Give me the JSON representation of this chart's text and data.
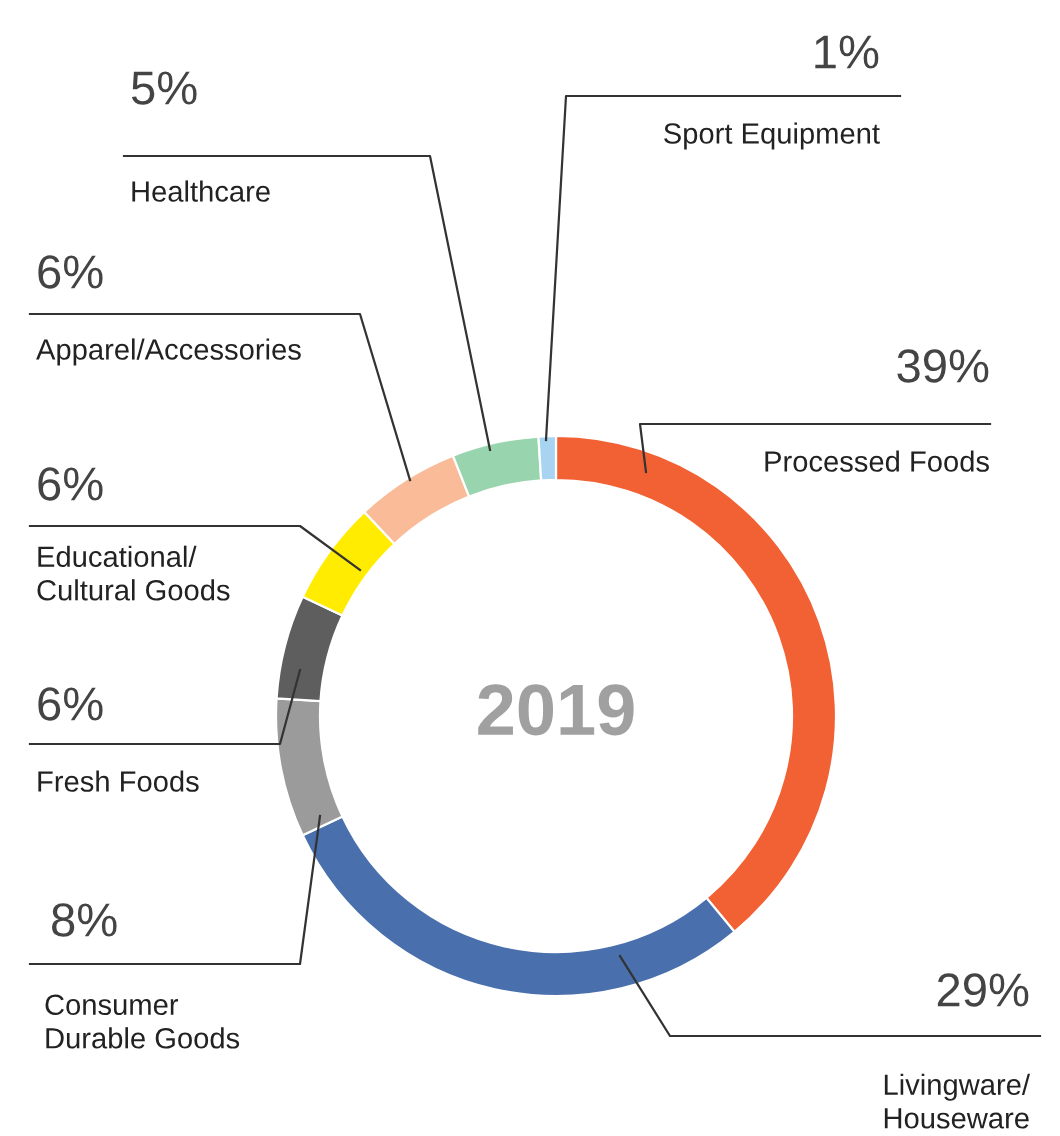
{
  "chart_data": {
    "type": "donut",
    "title": "2019",
    "categories": [
      "Processed Foods",
      "Livingware/\nHouseware",
      "Consumer\nDurable Goods",
      "Fresh Foods",
      "Educational/\nCultural Goods",
      "Apparel/Accessories",
      "Healthcare",
      "Sport Equipment"
    ],
    "values": [
      39,
      29,
      8,
      6,
      6,
      6,
      5,
      1
    ],
    "value_labels": [
      "39%",
      "29%",
      "8%",
      "6%",
      "6%",
      "6%",
      "5%",
      "1%"
    ],
    "colors": [
      "#f26133",
      "#4a6fad",
      "#9b9b9b",
      "#5e5e5e",
      "#ffec00",
      "#f9bb98",
      "#98d5ae",
      "#a8d4f2"
    ],
    "legend": false
  }
}
